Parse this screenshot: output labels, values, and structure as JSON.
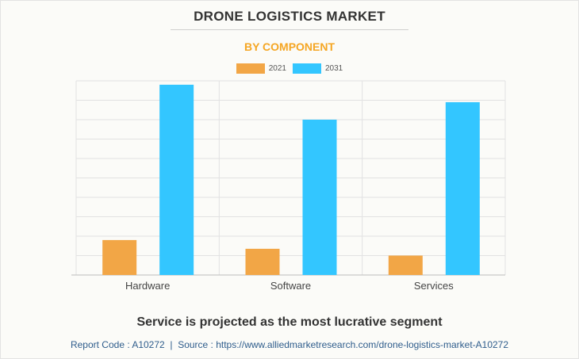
{
  "chart_data": {
    "type": "bar",
    "title": "DRONE LOGISTICS MARKET",
    "subtitle": "BY COMPONENT",
    "categories": [
      "Hardware",
      "Software",
      "Services"
    ],
    "series": [
      {
        "name": "2021",
        "color": "#f2a646",
        "values": [
          1.8,
          1.35,
          1.0
        ]
      },
      {
        "name": "2031",
        "color": "#33c6ff",
        "values": [
          9.8,
          8.0,
          8.9
        ]
      }
    ],
    "ylim": [
      0,
      10
    ],
    "grid": true,
    "legend_position": "top-center",
    "xlabel": "",
    "ylabel": ""
  },
  "colors": {
    "subtitle": "#f5a623",
    "grid": "#e2e2e2",
    "axis": "#bdbdbd",
    "footer": "#2f5d8c"
  },
  "caption": "Service is projected as the most lucrative segment",
  "footer": {
    "report_code": "Report Code : A10272",
    "separator": "|",
    "source": "Source : https://www.alliedmarketresearch.com/drone-logistics-market-A10272"
  }
}
